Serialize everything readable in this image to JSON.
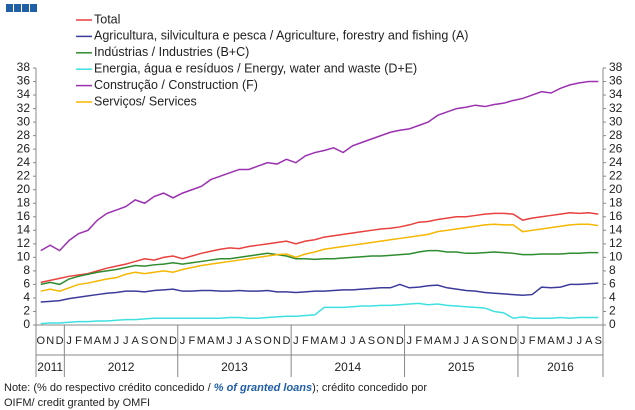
{
  "chart_data": {
    "type": "line",
    "categories": [
      "O",
      "N",
      "D",
      "J",
      "F",
      "M",
      "A",
      "M",
      "J",
      "J",
      "A",
      "S",
      "O",
      "N",
      "D",
      "J",
      "F",
      "M",
      "A",
      "M",
      "J",
      "J",
      "A",
      "S",
      "O",
      "N",
      "D",
      "J",
      "F",
      "M",
      "A",
      "M",
      "J",
      "J",
      "A",
      "S",
      "O",
      "N",
      "D",
      "J",
      "F",
      "M",
      "A",
      "M",
      "J",
      "J",
      "A",
      "S",
      "O",
      "N",
      "D",
      "J",
      "F",
      "M",
      "A",
      "M",
      "J",
      "J",
      "A",
      "S"
    ],
    "year_labels": [
      "2011",
      "2012",
      "2013",
      "2014",
      "2015",
      "2016"
    ],
    "series": [
      {
        "name": "Total",
        "color": "#e8413e",
        "values": [
          6.3,
          6.6,
          6.9,
          7.2,
          7.4,
          7.6,
          8.0,
          8.4,
          8.7,
          9.0,
          9.4,
          9.8,
          9.6,
          10.0,
          10.2,
          9.8,
          10.2,
          10.6,
          10.9,
          11.2,
          11.4,
          11.3,
          11.6,
          11.8,
          12.0,
          12.2,
          12.4,
          12.0,
          12.4,
          12.6,
          13.0,
          13.2,
          13.4,
          13.6,
          13.8,
          14.0,
          14.2,
          14.3,
          14.5,
          14.8,
          15.2,
          15.3,
          15.6,
          15.8,
          16.0,
          16.0,
          16.2,
          16.4,
          16.5,
          16.5,
          16.4,
          15.5,
          15.8,
          16.0,
          16.2,
          16.4,
          16.6,
          16.5,
          16.6,
          16.4
        ]
      },
      {
        "name": "Agricultura, silvicultura e pesca / Agriculture, forestry and fishing (A)",
        "color": "#3b3b9c",
        "values": [
          3.4,
          3.5,
          3.6,
          3.9,
          4.1,
          4.3,
          4.5,
          4.7,
          4.8,
          5.0,
          5.0,
          4.9,
          5.1,
          5.2,
          5.3,
          5.0,
          5.0,
          5.1,
          5.1,
          5.0,
          5.0,
          5.1,
          5.0,
          5.0,
          5.1,
          4.9,
          4.9,
          4.8,
          4.9,
          5.0,
          5.0,
          5.1,
          5.2,
          5.2,
          5.3,
          5.4,
          5.5,
          5.5,
          6.0,
          5.5,
          5.6,
          5.8,
          5.9,
          5.5,
          5.3,
          5.1,
          5.0,
          4.8,
          4.7,
          4.6,
          4.5,
          4.4,
          4.5,
          5.6,
          5.5,
          5.6,
          6.0,
          6.0,
          6.1,
          6.2
        ]
      },
      {
        "name": "Indústrias / Industries (B+C)",
        "color": "#2e8b2e",
        "values": [
          6.0,
          6.3,
          6.0,
          6.8,
          7.2,
          7.5,
          7.8,
          8.0,
          8.2,
          8.5,
          8.8,
          8.7,
          8.9,
          9.0,
          9.2,
          9.0,
          9.2,
          9.4,
          9.6,
          9.8,
          9.8,
          10.0,
          10.2,
          10.4,
          10.6,
          10.4,
          10.2,
          9.8,
          9.8,
          9.7,
          9.8,
          9.8,
          9.9,
          10.0,
          10.1,
          10.2,
          10.2,
          10.3,
          10.4,
          10.5,
          10.8,
          11.0,
          11.0,
          10.8,
          10.8,
          10.6,
          10.6,
          10.7,
          10.8,
          10.7,
          10.6,
          10.4,
          10.4,
          10.5,
          10.5,
          10.5,
          10.6,
          10.6,
          10.7,
          10.7
        ]
      },
      {
        "name": "Energia, água e resíduos / Energy, water and waste (D+E)",
        "color": "#3fe0e0",
        "values": [
          0.2,
          0.3,
          0.3,
          0.4,
          0.5,
          0.5,
          0.6,
          0.6,
          0.7,
          0.8,
          0.8,
          0.9,
          1.0,
          1.0,
          1.0,
          1.0,
          1.0,
          1.0,
          1.0,
          1.0,
          1.1,
          1.1,
          1.0,
          1.0,
          1.1,
          1.2,
          1.3,
          1.3,
          1.4,
          1.5,
          2.6,
          2.6,
          2.6,
          2.7,
          2.8,
          2.8,
          2.9,
          2.9,
          3.0,
          3.1,
          3.2,
          3.0,
          3.1,
          2.9,
          2.8,
          2.7,
          2.6,
          2.5,
          2.0,
          1.8,
          1.0,
          1.2,
          1.0,
          1.0,
          1.0,
          1.1,
          1.0,
          1.1,
          1.1,
          1.1
        ]
      },
      {
        "name": "Construção / Construction  (F)",
        "color": "#9b30b0",
        "values": [
          11.0,
          11.8,
          11.0,
          12.5,
          13.5,
          14.0,
          15.5,
          16.5,
          17.0,
          17.5,
          18.5,
          18.0,
          19.0,
          19.5,
          18.8,
          19.5,
          20.0,
          20.5,
          21.5,
          22.0,
          22.5,
          23.0,
          23.0,
          23.5,
          24.0,
          23.8,
          24.5,
          24.0,
          25.0,
          25.5,
          25.8,
          26.2,
          25.5,
          26.5,
          27.0,
          27.5,
          28.0,
          28.5,
          28.8,
          29.0,
          29.5,
          30.0,
          31.0,
          31.5,
          32.0,
          32.2,
          32.5,
          32.3,
          32.6,
          32.8,
          33.2,
          33.5,
          34.0,
          34.5,
          34.3,
          35.0,
          35.5,
          35.8,
          36.0,
          36.0
        ]
      },
      {
        "name": "Serviços/ Services",
        "color": "#f5b700",
        "values": [
          5.0,
          5.3,
          5.0,
          5.5,
          6.0,
          6.2,
          6.5,
          6.8,
          7.0,
          7.5,
          7.8,
          7.6,
          7.8,
          8.0,
          7.8,
          8.2,
          8.5,
          8.8,
          9.0,
          9.2,
          9.4,
          9.6,
          9.8,
          10.0,
          10.2,
          10.4,
          10.5,
          10.0,
          10.5,
          10.8,
          11.2,
          11.4,
          11.6,
          11.8,
          12.0,
          12.2,
          12.4,
          12.6,
          12.8,
          13.0,
          13.2,
          13.4,
          13.8,
          14.0,
          14.2,
          14.4,
          14.6,
          14.8,
          14.9,
          14.8,
          14.8,
          13.8,
          14.0,
          14.2,
          14.4,
          14.6,
          14.8,
          14.9,
          14.9,
          14.7
        ]
      }
    ],
    "ylim": [
      0,
      38
    ],
    "yticks": [
      0,
      2,
      4,
      6,
      8,
      10,
      12,
      14,
      16,
      18,
      20,
      22,
      24,
      26,
      28,
      30,
      32,
      34,
      36,
      38
    ],
    "y2lim": [
      0,
      38
    ],
    "y2ticks": [
      0,
      2,
      4,
      6,
      8,
      10,
      12,
      14,
      16,
      18,
      20,
      22,
      24,
      26,
      28,
      30,
      32,
      34,
      36,
      38
    ],
    "note": [
      "Note: (% do respectivo crédito concedido / ",
      "% of granted loans",
      "); crédito concedido por",
      "OIFM/ credit granted by OMFI"
    ]
  }
}
